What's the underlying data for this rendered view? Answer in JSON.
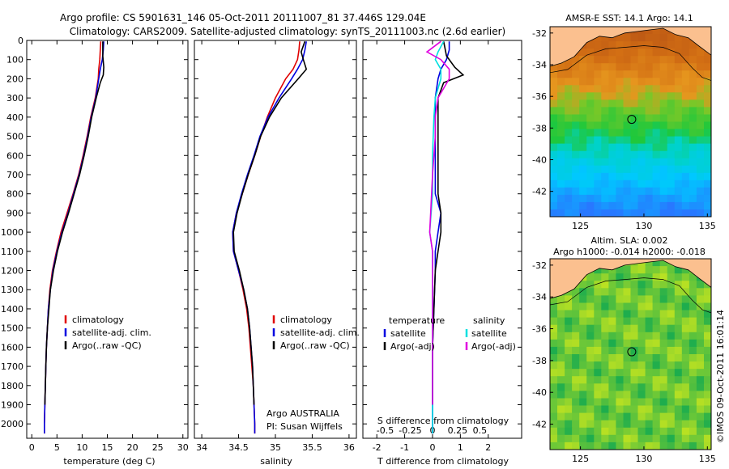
{
  "header": {
    "line1": "Argo profile: CS 5901631_146 05-Oct-2011 20111007_81 37.446S 129.04E",
    "line2": "Climatology: CARS2009. Satellite-adjusted climatology: synTS_20111003.nc (2.6d earlier)"
  },
  "colors": {
    "clim": "#e00000",
    "sat": "#0000e0",
    "argo": "#000000",
    "sat_s": "#00e0e0",
    "argo_s": "#e000e0",
    "land": "#fbc08f"
  },
  "chart_data": [
    {
      "type": "line",
      "id": "temperature",
      "xlabel": "temperature (deg C)",
      "xlim": [
        -1,
        31
      ],
      "ylim": [
        0,
        2075
      ],
      "y_reversed": true,
      "xticks": [
        0,
        5,
        10,
        15,
        20,
        25,
        30
      ],
      "yticks": [
        0,
        100,
        200,
        300,
        400,
        500,
        600,
        700,
        800,
        900,
        1000,
        1100,
        1200,
        1300,
        1400,
        1500,
        1600,
        1700,
        1800,
        1900,
        2000
      ],
      "legend": [
        "climatology",
        "satellite-adj. clim.",
        "Argo(..raw -QC)"
      ],
      "series": [
        {
          "name": "climatology",
          "color_key": "clim",
          "points": [
            [
              13.7,
              5
            ],
            [
              13.6,
              50
            ],
            [
              13.5,
              100
            ],
            [
              13.3,
              150
            ],
            [
              13.2,
              200
            ],
            [
              12.6,
              300
            ],
            [
              11.7,
              400
            ],
            [
              11,
              500
            ],
            [
              10.2,
              600
            ],
            [
              9.3,
              700
            ],
            [
              8.2,
              800
            ],
            [
              7,
              900
            ],
            [
              5.8,
              1000
            ],
            [
              4.9,
              1100
            ],
            [
              4.1,
              1200
            ],
            [
              3.6,
              1300
            ],
            [
              3.3,
              1400
            ],
            [
              3.1,
              1500
            ],
            [
              2.9,
              1600
            ],
            [
              2.8,
              1700
            ],
            [
              2.7,
              1800
            ],
            [
              2.6,
              1900
            ],
            [
              2.5,
              2000
            ],
            [
              2.5,
              2050
            ]
          ]
        },
        {
          "name": "satellite-adj. clim.",
          "color_key": "sat",
          "points": [
            [
              14.3,
              5
            ],
            [
              14.2,
              50
            ],
            [
              14,
              100
            ],
            [
              13.6,
              150
            ],
            [
              13.3,
              200
            ],
            [
              12.7,
              300
            ],
            [
              11.8,
              400
            ],
            [
              11.1,
              500
            ],
            [
              10.3,
              600
            ],
            [
              9.4,
              700
            ],
            [
              8.3,
              800
            ],
            [
              7.2,
              900
            ],
            [
              6,
              1000
            ],
            [
              5,
              1100
            ],
            [
              4.2,
              1200
            ],
            [
              3.7,
              1300
            ],
            [
              3.3,
              1400
            ],
            [
              3.1,
              1500
            ],
            [
              2.9,
              1600
            ],
            [
              2.8,
              1700
            ],
            [
              2.7,
              1800
            ],
            [
              2.6,
              1900
            ],
            [
              2.5,
              2000
            ],
            [
              2.5,
              2050
            ]
          ]
        },
        {
          "name": "Argo(..raw -QC)",
          "color_key": "argo",
          "points": [
            [
              14.1,
              5
            ],
            [
              14.1,
              80
            ],
            [
              14.3,
              140
            ],
            [
              14.2,
              180
            ],
            [
              13.6,
              220
            ],
            [
              12.8,
              300
            ],
            [
              11.9,
              400
            ],
            [
              11.2,
              500
            ],
            [
              10.4,
              600
            ],
            [
              9.5,
              700
            ],
            [
              8.4,
              800
            ],
            [
              7.3,
              900
            ],
            [
              6.1,
              1000
            ],
            [
              5.1,
              1100
            ],
            [
              4.3,
              1200
            ],
            [
              3.7,
              1300
            ],
            [
              3.4,
              1400
            ],
            [
              3.1,
              1500
            ],
            [
              2.9,
              1600
            ],
            [
              2.8,
              1700
            ],
            [
              2.7,
              1800
            ],
            [
              2.6,
              1900
            ]
          ]
        }
      ]
    },
    {
      "type": "line",
      "id": "salinity",
      "xlabel": "salinity",
      "xlim": [
        33.9,
        36.1
      ],
      "ylim": [
        0,
        2075
      ],
      "y_reversed": true,
      "xticks": [
        34,
        34.5,
        35,
        35.5,
        36
      ],
      "legend": [
        "climatology",
        "satellite-adj. clim.",
        "Argo(..raw -QC)"
      ],
      "note1": "Argo AUSTRALIA",
      "note2": "PI: Susan Wijffels",
      "series": [
        {
          "name": "climatology",
          "color_key": "clim",
          "points": [
            [
              35.33,
              5
            ],
            [
              35.32,
              50
            ],
            [
              35.3,
              100
            ],
            [
              35.24,
              150
            ],
            [
              35.14,
              200
            ],
            [
              35.0,
              300
            ],
            [
              34.89,
              400
            ],
            [
              34.8,
              500
            ],
            [
              34.72,
              600
            ],
            [
              34.63,
              700
            ],
            [
              34.55,
              800
            ],
            [
              34.47,
              900
            ],
            [
              34.42,
              1000
            ],
            [
              34.43,
              1100
            ],
            [
              34.5,
              1200
            ],
            [
              34.56,
              1300
            ],
            [
              34.61,
              1400
            ],
            [
              34.64,
              1500
            ],
            [
              34.66,
              1600
            ],
            [
              34.68,
              1700
            ],
            [
              34.7,
              1800
            ],
            [
              34.71,
              1900
            ],
            [
              34.72,
              2000
            ],
            [
              34.72,
              2050
            ]
          ]
        },
        {
          "name": "satellite-adj. clim.",
          "color_key": "sat",
          "points": [
            [
              35.42,
              5
            ],
            [
              35.4,
              50
            ],
            [
              35.37,
              100
            ],
            [
              35.3,
              150
            ],
            [
              35.22,
              200
            ],
            [
              35.05,
              300
            ],
            [
              34.9,
              400
            ],
            [
              34.79,
              500
            ],
            [
              34.71,
              600
            ],
            [
              34.62,
              700
            ],
            [
              34.54,
              800
            ],
            [
              34.47,
              900
            ],
            [
              34.42,
              1000
            ],
            [
              34.43,
              1100
            ],
            [
              34.5,
              1200
            ],
            [
              34.57,
              1300
            ],
            [
              34.62,
              1400
            ],
            [
              34.65,
              1500
            ],
            [
              34.67,
              1600
            ],
            [
              34.69,
              1700
            ],
            [
              34.7,
              1800
            ],
            [
              34.71,
              1900
            ],
            [
              34.72,
              2000
            ],
            [
              34.72,
              2050
            ]
          ]
        },
        {
          "name": "Argo(..raw -QC)",
          "color_key": "argo",
          "points": [
            [
              35.4,
              5
            ],
            [
              35.35,
              60
            ],
            [
              35.38,
              100
            ],
            [
              35.42,
              150
            ],
            [
              35.31,
              200
            ],
            [
              35.08,
              300
            ],
            [
              34.92,
              400
            ],
            [
              34.8,
              500
            ],
            [
              34.72,
              600
            ],
            [
              34.63,
              700
            ],
            [
              34.55,
              800
            ],
            [
              34.48,
              900
            ],
            [
              34.43,
              1000
            ],
            [
              34.44,
              1100
            ],
            [
              34.51,
              1200
            ],
            [
              34.57,
              1300
            ],
            [
              34.62,
              1400
            ],
            [
              34.65,
              1500
            ],
            [
              34.67,
              1600
            ],
            [
              34.69,
              1700
            ],
            [
              34.7,
              1800
            ],
            [
              34.71,
              1900
            ]
          ]
        }
      ]
    },
    {
      "type": "line",
      "id": "difference",
      "xlabel": "T difference from climatology",
      "xlabel2": "S difference from climatology",
      "xlim": [
        -2.5,
        3.2
      ],
      "ylim": [
        0,
        2075
      ],
      "y_reversed": true,
      "xticks": [
        -2,
        -1,
        0,
        1,
        2
      ],
      "xticks2": [
        {
          "pos": -1.7,
          "label": "-0.5"
        },
        {
          "pos": -0.8,
          "label": "-0.25"
        },
        {
          "pos": 0,
          "label": "0"
        },
        {
          "pos": 0.9,
          "label": "0.25"
        },
        {
          "pos": 1.7,
          "label": "0.5"
        }
      ],
      "legend_t": {
        "title": "temperature",
        "items": [
          "satellite",
          "Argo(-adj)"
        ]
      },
      "legend_s": {
        "title": "salinity",
        "items": [
          "satellite",
          "Argo(-adj)"
        ]
      },
      "series": [
        {
          "name": "satellite",
          "color_key": "sat",
          "points": [
            [
              0.6,
              5
            ],
            [
              0.6,
              50
            ],
            [
              0.5,
              100
            ],
            [
              0.3,
              150
            ],
            [
              0.2,
              200
            ],
            [
              0.1,
              300
            ],
            [
              0.1,
              400
            ],
            [
              0.1,
              500
            ],
            [
              0.1,
              600
            ],
            [
              0.1,
              700
            ],
            [
              0.1,
              800
            ],
            [
              0.3,
              900
            ],
            [
              0.2,
              1000
            ],
            [
              0.1,
              1100
            ],
            [
              0.1,
              1200
            ],
            [
              0.05,
              1400
            ],
            [
              0,
              1600
            ],
            [
              0,
              1800
            ],
            [
              0,
              2050
            ]
          ]
        },
        {
          "name": "Argo(-adj)",
          "color_key": "argo",
          "points": [
            [
              0.4,
              5
            ],
            [
              0.5,
              80
            ],
            [
              0.8,
              140
            ],
            [
              1.1,
              180
            ],
            [
              0.4,
              220
            ],
            [
              0.2,
              300
            ],
            [
              0.2,
              400
            ],
            [
              0.2,
              500
            ],
            [
              0.2,
              600
            ],
            [
              0.2,
              700
            ],
            [
              0.2,
              800
            ],
            [
              0.3,
              900
            ],
            [
              0.3,
              1000
            ],
            [
              0.2,
              1100
            ],
            [
              0.1,
              1200
            ],
            [
              0.05,
              1400
            ],
            [
              0,
              1600
            ],
            [
              0,
              1900
            ]
          ]
        },
        {
          "name": "satellite",
          "color_key": "sat_s",
          "points": [
            [
              0.4,
              5
            ],
            [
              0.2,
              60
            ],
            [
              0.1,
              100
            ],
            [
              0.3,
              150
            ],
            [
              0.3,
              200
            ],
            [
              0.1,
              300
            ],
            [
              0.05,
              400
            ],
            [
              0.0,
              600
            ],
            [
              0.0,
              800
            ],
            [
              -0.1,
              1000
            ],
            [
              0.0,
              1100
            ],
            [
              0.0,
              1300
            ],
            [
              0.0,
              1600
            ],
            [
              0.0,
              2050
            ]
          ]
        },
        {
          "name": "Argo(-adj)",
          "color_key": "argo_s",
          "points": [
            [
              0.3,
              5
            ],
            [
              -0.2,
              60
            ],
            [
              0.3,
              100
            ],
            [
              0.6,
              150
            ],
            [
              0.6,
              200
            ],
            [
              0.2,
              300
            ],
            [
              0.1,
              400
            ],
            [
              0.1,
              500
            ],
            [
              0.0,
              700
            ],
            [
              -0.1,
              1000
            ],
            [
              0.0,
              1100
            ],
            [
              0.0,
              1300
            ],
            [
              0.0,
              1600
            ],
            [
              0.0,
              1900
            ]
          ]
        }
      ]
    },
    {
      "type": "heatmap",
      "id": "sst_map",
      "title": "AMSR-E SST: 14.1  Argo: 14.1",
      "xlim": [
        122.6,
        135.3
      ],
      "ylim": [
        -43.6,
        -31.6
      ],
      "xticks": [
        125,
        130,
        135
      ],
      "yticks": [
        -32,
        -34,
        -36,
        -38,
        -40,
        -42
      ],
      "marker": {
        "lon": 129.04,
        "lat": -37.45
      }
    },
    {
      "type": "heatmap",
      "id": "sla_map",
      "title": "Altim. SLA: 0.002",
      "subtitle": "Argo h1000: -0.014 h2000: -0.018",
      "xlim": [
        122.6,
        135.3
      ],
      "ylim": [
        -43.6,
        -31.6
      ],
      "xticks": [
        125,
        130,
        135
      ],
      "yticks": [
        -32,
        -34,
        -36,
        -38,
        -40,
        -42
      ],
      "marker": {
        "lon": 129.04,
        "lat": -37.45
      }
    }
  ],
  "footer": {
    "credit": "©IMOS 09-Oct-2011 16:01:14"
  }
}
